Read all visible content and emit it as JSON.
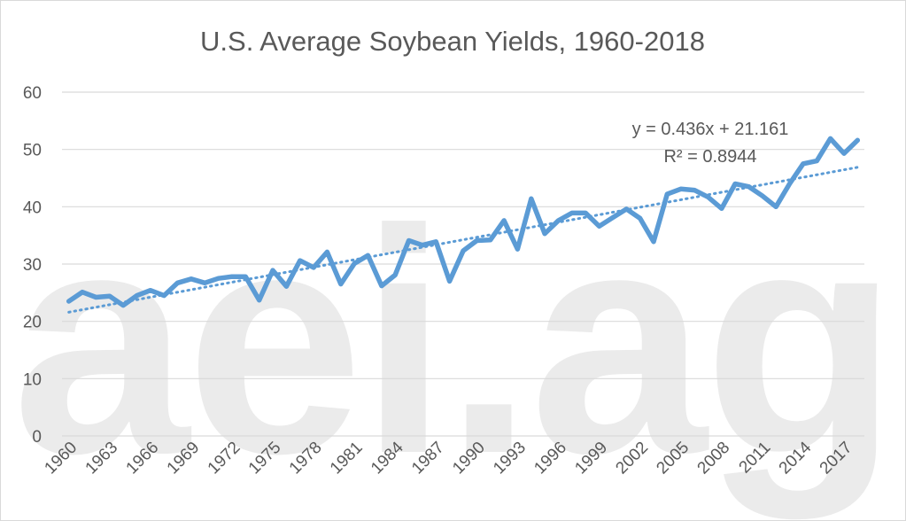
{
  "watermark_text": "aei.ag",
  "chart_data": {
    "type": "line",
    "title": "U.S. Average Soybean Yields, 1960-2018",
    "xlabel": "",
    "ylabel": "",
    "ylim": [
      0,
      60
    ],
    "yticks": [
      0,
      10,
      20,
      30,
      40,
      50,
      60
    ],
    "xtick_labels": [
      "1960",
      "1963",
      "1966",
      "1969",
      "1972",
      "1975",
      "1978",
      "1981",
      "1984",
      "1987",
      "1990",
      "1993",
      "1996",
      "1999",
      "2002",
      "2005",
      "2008",
      "2011",
      "2014",
      "2017"
    ],
    "grid": true,
    "legend": "none",
    "series": [
      {
        "color": "#5b9bd5",
        "x": [
          1960,
          1961,
          1962,
          1963,
          1964,
          1965,
          1966,
          1967,
          1968,
          1969,
          1970,
          1971,
          1972,
          1973,
          1974,
          1975,
          1976,
          1977,
          1978,
          1979,
          1980,
          1981,
          1982,
          1983,
          1984,
          1985,
          1986,
          1987,
          1988,
          1989,
          1990,
          1991,
          1992,
          1993,
          1994,
          1995,
          1996,
          1997,
          1998,
          1999,
          2000,
          2001,
          2002,
          2003,
          2004,
          2005,
          2006,
          2007,
          2008,
          2009,
          2010,
          2011,
          2012,
          2013,
          2014,
          2015,
          2016,
          2017,
          2018
        ],
        "values": [
          23.5,
          25.1,
          24.2,
          24.4,
          22.8,
          24.5,
          25.4,
          24.5,
          26.7,
          27.4,
          26.7,
          27.5,
          27.8,
          27.8,
          23.7,
          28.9,
          26.1,
          30.6,
          29.4,
          32.1,
          26.5,
          30.1,
          31.5,
          26.2,
          28.1,
          34.1,
          33.3,
          33.9,
          27.0,
          32.3,
          34.1,
          34.2,
          37.6,
          32.6,
          41.4,
          35.3,
          37.6,
          38.9,
          38.9,
          36.6,
          38.1,
          39.6,
          38.0,
          33.9,
          42.2,
          43.1,
          42.9,
          41.7,
          39.7,
          44.0,
          43.5,
          41.9,
          40.0,
          44.0,
          47.5,
          48.0,
          51.9,
          49.3,
          51.6
        ]
      },
      {
        "kind": "trendline",
        "style": "dotted",
        "color": "#5b9bd5",
        "slope": 0.436,
        "intercept": 21.161
      }
    ],
    "annotations": {
      "equation": "y = 0.436x + 21.161",
      "r_squared": "R² = 0.8944"
    }
  }
}
